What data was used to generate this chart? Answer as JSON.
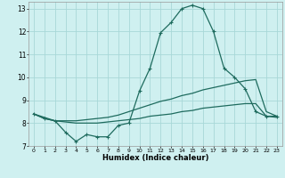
{
  "title": "",
  "xlabel": "Humidex (Indice chaleur)",
  "bg_color": "#cff0f0",
  "grid_color": "#a8d8d8",
  "line_color": "#1e6b5e",
  "xlim": [
    -0.5,
    23.5
  ],
  "ylim": [
    7,
    13.3
  ],
  "xticks": [
    0,
    1,
    2,
    3,
    4,
    5,
    6,
    7,
    8,
    9,
    10,
    11,
    12,
    13,
    14,
    15,
    16,
    17,
    18,
    19,
    20,
    21,
    22,
    23
  ],
  "yticks": [
    7,
    8,
    9,
    10,
    11,
    12,
    13
  ],
  "line1_x": [
    0,
    1,
    2,
    3,
    4,
    5,
    6,
    7,
    8,
    9,
    10,
    11,
    12,
    13,
    14,
    15,
    16,
    17,
    18,
    19,
    20,
    21,
    22,
    23
  ],
  "line1_y": [
    8.4,
    8.2,
    8.1,
    7.6,
    7.2,
    7.5,
    7.4,
    7.4,
    7.9,
    8.0,
    9.4,
    10.4,
    11.95,
    12.4,
    13.0,
    13.15,
    13.0,
    12.0,
    10.4,
    10.0,
    9.5,
    8.5,
    8.3,
    8.3
  ],
  "line2_x": [
    0,
    1,
    2,
    3,
    4,
    5,
    6,
    7,
    8,
    9,
    10,
    11,
    12,
    13,
    14,
    15,
    16,
    17,
    18,
    19,
    20,
    21,
    22,
    23
  ],
  "line2_y": [
    8.4,
    8.25,
    8.1,
    8.1,
    8.1,
    8.15,
    8.2,
    8.25,
    8.35,
    8.5,
    8.65,
    8.8,
    8.95,
    9.05,
    9.2,
    9.3,
    9.45,
    9.55,
    9.65,
    9.75,
    9.85,
    9.9,
    8.5,
    8.3
  ],
  "line3_x": [
    0,
    1,
    2,
    3,
    4,
    5,
    6,
    7,
    8,
    9,
    10,
    11,
    12,
    13,
    14,
    15,
    16,
    17,
    18,
    19,
    20,
    21,
    22,
    23
  ],
  "line3_y": [
    8.4,
    8.2,
    8.1,
    8.05,
    8.0,
    8.0,
    8.0,
    8.05,
    8.1,
    8.15,
    8.2,
    8.3,
    8.35,
    8.4,
    8.5,
    8.55,
    8.65,
    8.7,
    8.75,
    8.8,
    8.85,
    8.85,
    8.3,
    8.25
  ]
}
